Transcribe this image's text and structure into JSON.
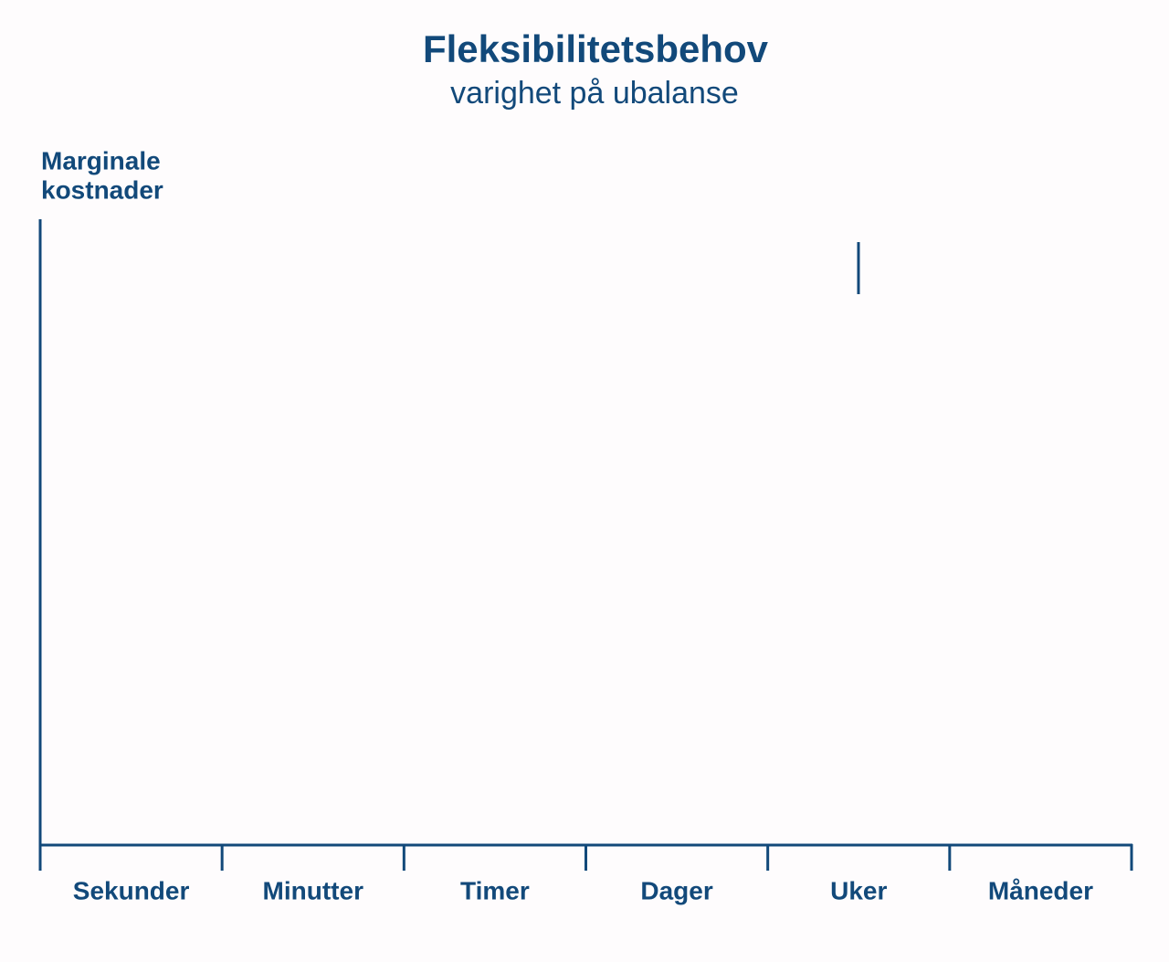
{
  "title": "Fleksibilitetsbehov",
  "subtitle": "varighet på ubalanse",
  "y_axis": {
    "label_lines": [
      "Marginale",
      "kostnader"
    ]
  },
  "x_axis": {
    "categories": [
      "Sekunder",
      "Minutter",
      "Timer",
      "Dager",
      "Uker",
      "Måneder"
    ]
  }
}
